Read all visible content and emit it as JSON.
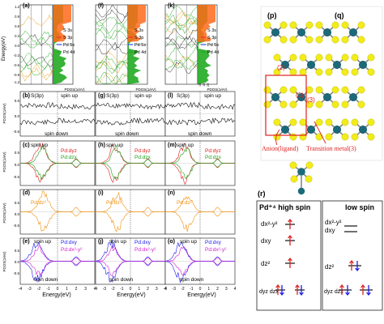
{
  "figure": {
    "panel_letters": [
      "(a)",
      "(f)",
      "(k)",
      "(b)",
      "(g)",
      "(l)",
      "(c)",
      "(h)",
      "(m)",
      "(d)",
      "(i)",
      "(n)",
      "(e)",
      "(j)",
      "(o)",
      "(p)",
      "(q)",
      "(r)"
    ],
    "band_axis_label": "Energy(eV)",
    "band_y_ticks": [
      "1.2",
      "0.9",
      "0.6",
      "0.3",
      "0.0",
      "-0.3",
      "-0.6",
      "-0.9",
      "-1.2"
    ],
    "band_legend": [
      "S 3s",
      "S 3p",
      "Pd 5s",
      "Pd 4d"
    ],
    "band_legend_colors": [
      "#ff8c1a",
      "#ff2a2a",
      "#2a4cff",
      "#22aa22"
    ],
    "pdos_axis_label": "PDOS(1/eV)",
    "pdos_x_ticks": [
      "10",
      "15",
      "20"
    ],
    "pdos_ticks_small": [
      "10",
      "15",
      "20"
    ],
    "row_y_label": "PDOS(1/eV)",
    "s3p_label": "S(3p)",
    "spin_up": "spin up",
    "spin_down": "spin down",
    "pd_dyz": "Pd:dyz",
    "pd_dzx": "Pd:dzx",
    "pd_dz2": "Pd:dz²",
    "pd_dxy": "Pd:dxy",
    "pd_dx2y2": "Pd:dx²-y²",
    "row_y_ticks": [
      "0.5",
      "0.0",
      "-0.5"
    ],
    "row_b_y_ticks": [
      "0.6",
      "0.0",
      "-0.6"
    ],
    "energy_ticks": [
      "-4",
      "-3",
      "-2",
      "-1",
      "0",
      "1",
      "2",
      "3",
      "4"
    ],
    "energy_label": "Energy(eV)",
    "struct_labels": {
      "l2": "(2)",
      "l1": "(1)",
      "l3": "(3)",
      "anion": "Anion(ligand)",
      "tm": "Transition metal(3)"
    },
    "r_panel": {
      "high_title": "Pd⁺⁴  high spin",
      "low_title": "low spin",
      "orbitals_high": [
        "dx²-y²",
        "dxy",
        "dz²",
        "dyz dzx"
      ],
      "orbitals_low": [
        "dx²-y²",
        "dxy",
        "dz²",
        "dyz dzx"
      ]
    },
    "colors": {
      "sp_black": "#111111",
      "dyz_red": "#e02020",
      "dzx_green": "#20a020",
      "dz2_orange": "#f09010",
      "dxy_blue": "#1a1aee",
      "dx2y2_magenta": "#d020d0",
      "atom_yellow": "#f2ec1a",
      "atom_teal": "#1a6a7a",
      "box_red": "#e02020"
    }
  }
}
